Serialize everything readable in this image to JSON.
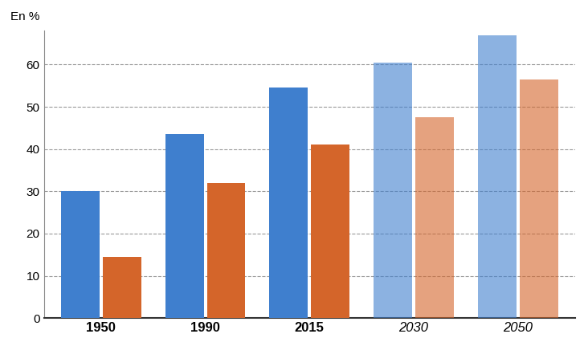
{
  "chart_data": {
    "type": "bar",
    "y_label": "En %",
    "categories": [
      "1950",
      "1990",
      "2015",
      "2030",
      "2050"
    ],
    "series": [
      {
        "color": "#3f7fce",
        "values": [
          30,
          43.5,
          54.5,
          60.5,
          67
        ]
      },
      {
        "color": "#d4652a",
        "values": [
          14.5,
          32,
          41,
          47.5,
          56.5
        ]
      }
    ],
    "ylim": [
      0,
      68
    ],
    "yticks": [
      0,
      10,
      20,
      30,
      40,
      50,
      60
    ],
    "grid": true
  }
}
